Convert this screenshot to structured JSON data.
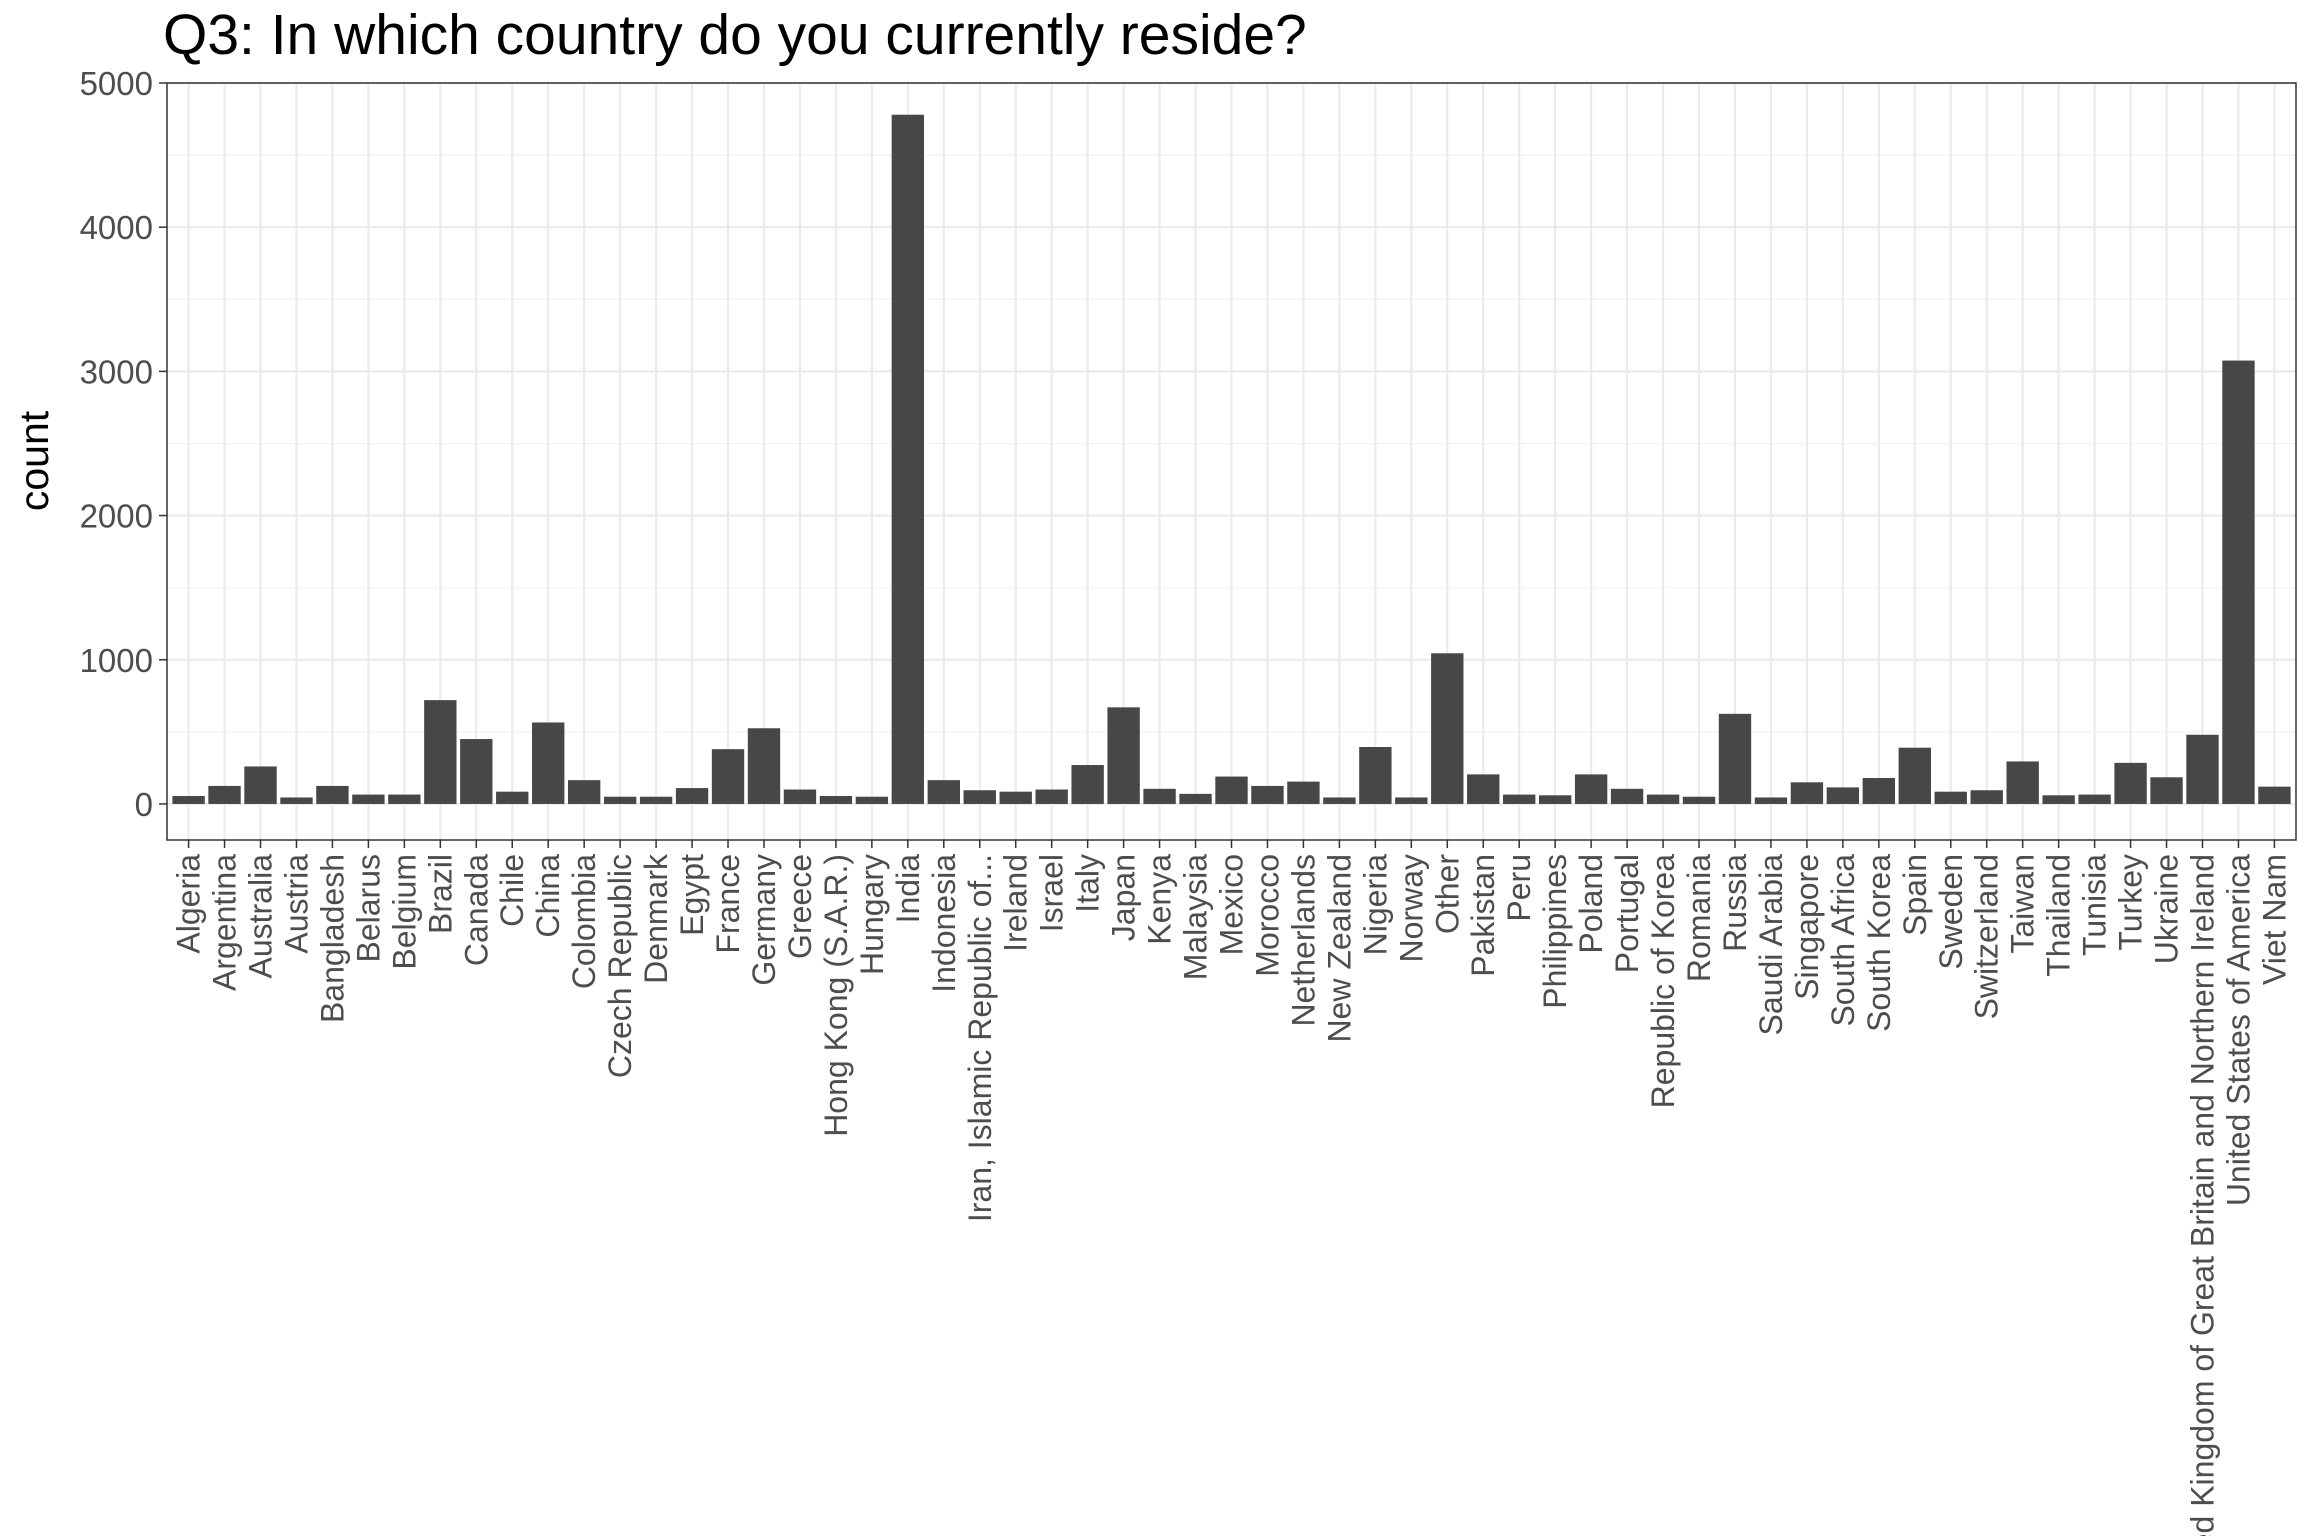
{
  "chart_data": {
    "type": "bar",
    "title": "Q3: In which country do you currently reside?",
    "xlabel": "",
    "ylabel": "count",
    "ylim": [
      -250,
      5000
    ],
    "yticks": [
      0,
      1000,
      2000,
      3000,
      4000,
      5000
    ],
    "grid": true,
    "bar_color": "#474747",
    "categories": [
      "Algeria",
      "Argentina",
      "Australia",
      "Austria",
      "Bangladesh",
      "Belarus",
      "Belgium",
      "Brazil",
      "Canada",
      "Chile",
      "China",
      "Colombia",
      "Czech Republic",
      "Denmark",
      "Egypt",
      "France",
      "Germany",
      "Greece",
      "Hong Kong (S.A.R.)",
      "Hungary",
      "India",
      "Indonesia",
      "Iran, Islamic Republic of...",
      "Ireland",
      "Israel",
      "Italy",
      "Japan",
      "Kenya",
      "Malaysia",
      "Mexico",
      "Morocco",
      "Netherlands",
      "New Zealand",
      "Nigeria",
      "Norway",
      "Other",
      "Pakistan",
      "Peru",
      "Philippines",
      "Poland",
      "Portugal",
      "Republic of Korea",
      "Romania",
      "Russia",
      "Saudi Arabia",
      "Singapore",
      "South Africa",
      "South Korea",
      "Spain",
      "Sweden",
      "Switzerland",
      "Taiwan",
      "Thailand",
      "Tunisia",
      "Turkey",
      "Ukraine",
      "United Kingdom of Great Britain and Northern Ireland",
      "United States of America",
      "Viet Nam"
    ],
    "values": [
      55,
      125,
      260,
      45,
      125,
      65,
      65,
      720,
      450,
      85,
      565,
      165,
      50,
      50,
      110,
      380,
      525,
      100,
      55,
      50,
      4780,
      165,
      95,
      85,
      100,
      270,
      670,
      105,
      70,
      190,
      125,
      155,
      45,
      395,
      45,
      1045,
      205,
      65,
      60,
      205,
      105,
      65,
      50,
      625,
      45,
      150,
      115,
      180,
      390,
      85,
      95,
      295,
      60,
      65,
      285,
      185,
      480,
      3075,
      120
    ]
  }
}
